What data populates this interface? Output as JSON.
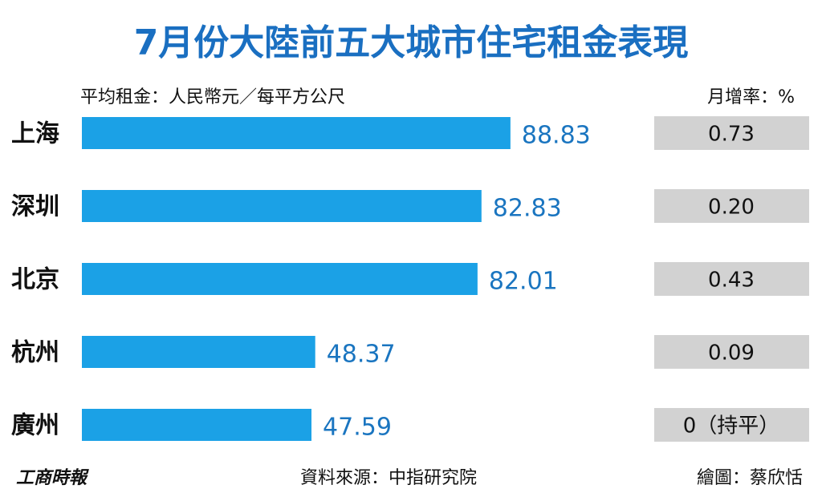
{
  "chart_data": {
    "type": "bar",
    "orientation": "horizontal",
    "title": "7月份大陸前五大城市住宅租金表現",
    "subtitle": "平均租金：人民幣元／每平方公尺",
    "categories": [
      "上海",
      "深圳",
      "北京",
      "杭州",
      "廣州"
    ],
    "values": [
      88.83,
      82.83,
      82.01,
      48.37,
      47.59
    ],
    "color": "#1ba1e6",
    "growth": {
      "label": "月增率：%",
      "values": [
        0.73,
        0.2,
        0.43,
        0.09,
        0
      ],
      "value_labels": [
        "0.73",
        "0.20",
        "0.43",
        "0.09",
        "0（持平）"
      ]
    },
    "brand": "工商時報",
    "source": "資料來源：中指研究院",
    "credit": "繪圖：蔡欣恬"
  }
}
